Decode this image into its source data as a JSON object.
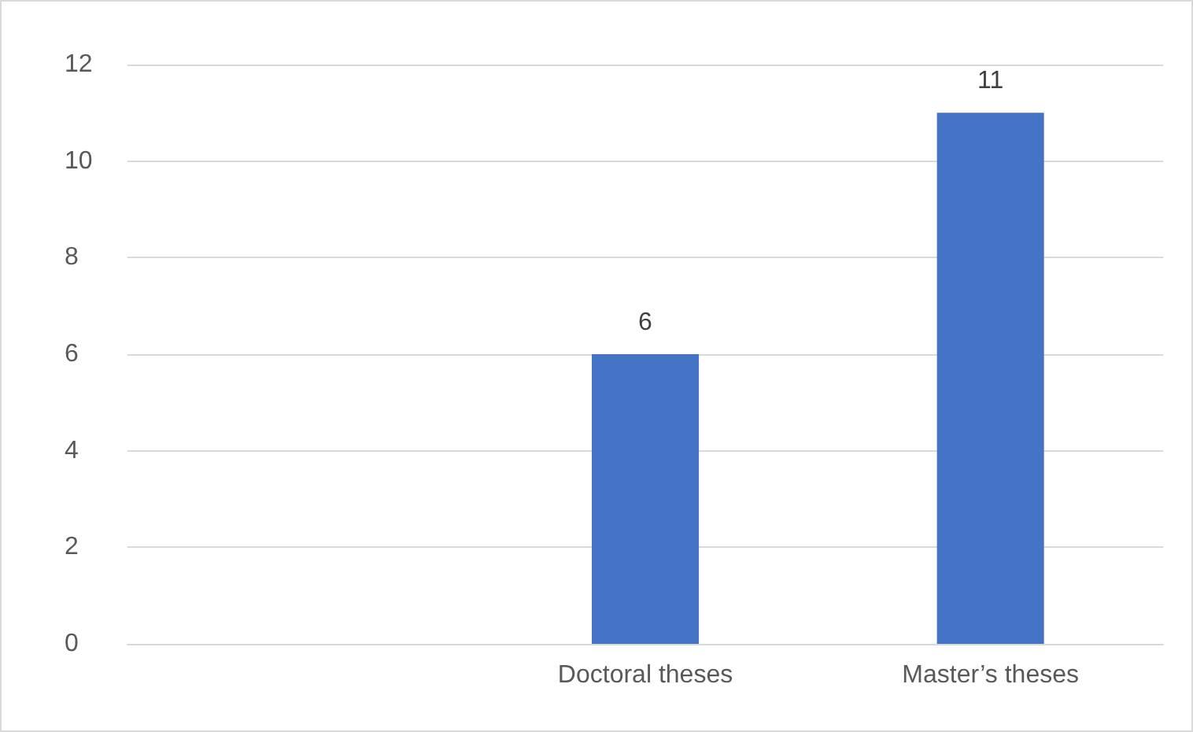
{
  "chart_data": {
    "type": "bar",
    "categories": [
      null,
      "Doctoral theses",
      "Master’s theses"
    ],
    "values": [
      null,
      6,
      11
    ],
    "color": "#4472c4",
    "ylim": [
      0,
      12
    ],
    "yticks": [
      0,
      2,
      4,
      6,
      8,
      10,
      12
    ],
    "grid": "y",
    "data_labels": true
  }
}
